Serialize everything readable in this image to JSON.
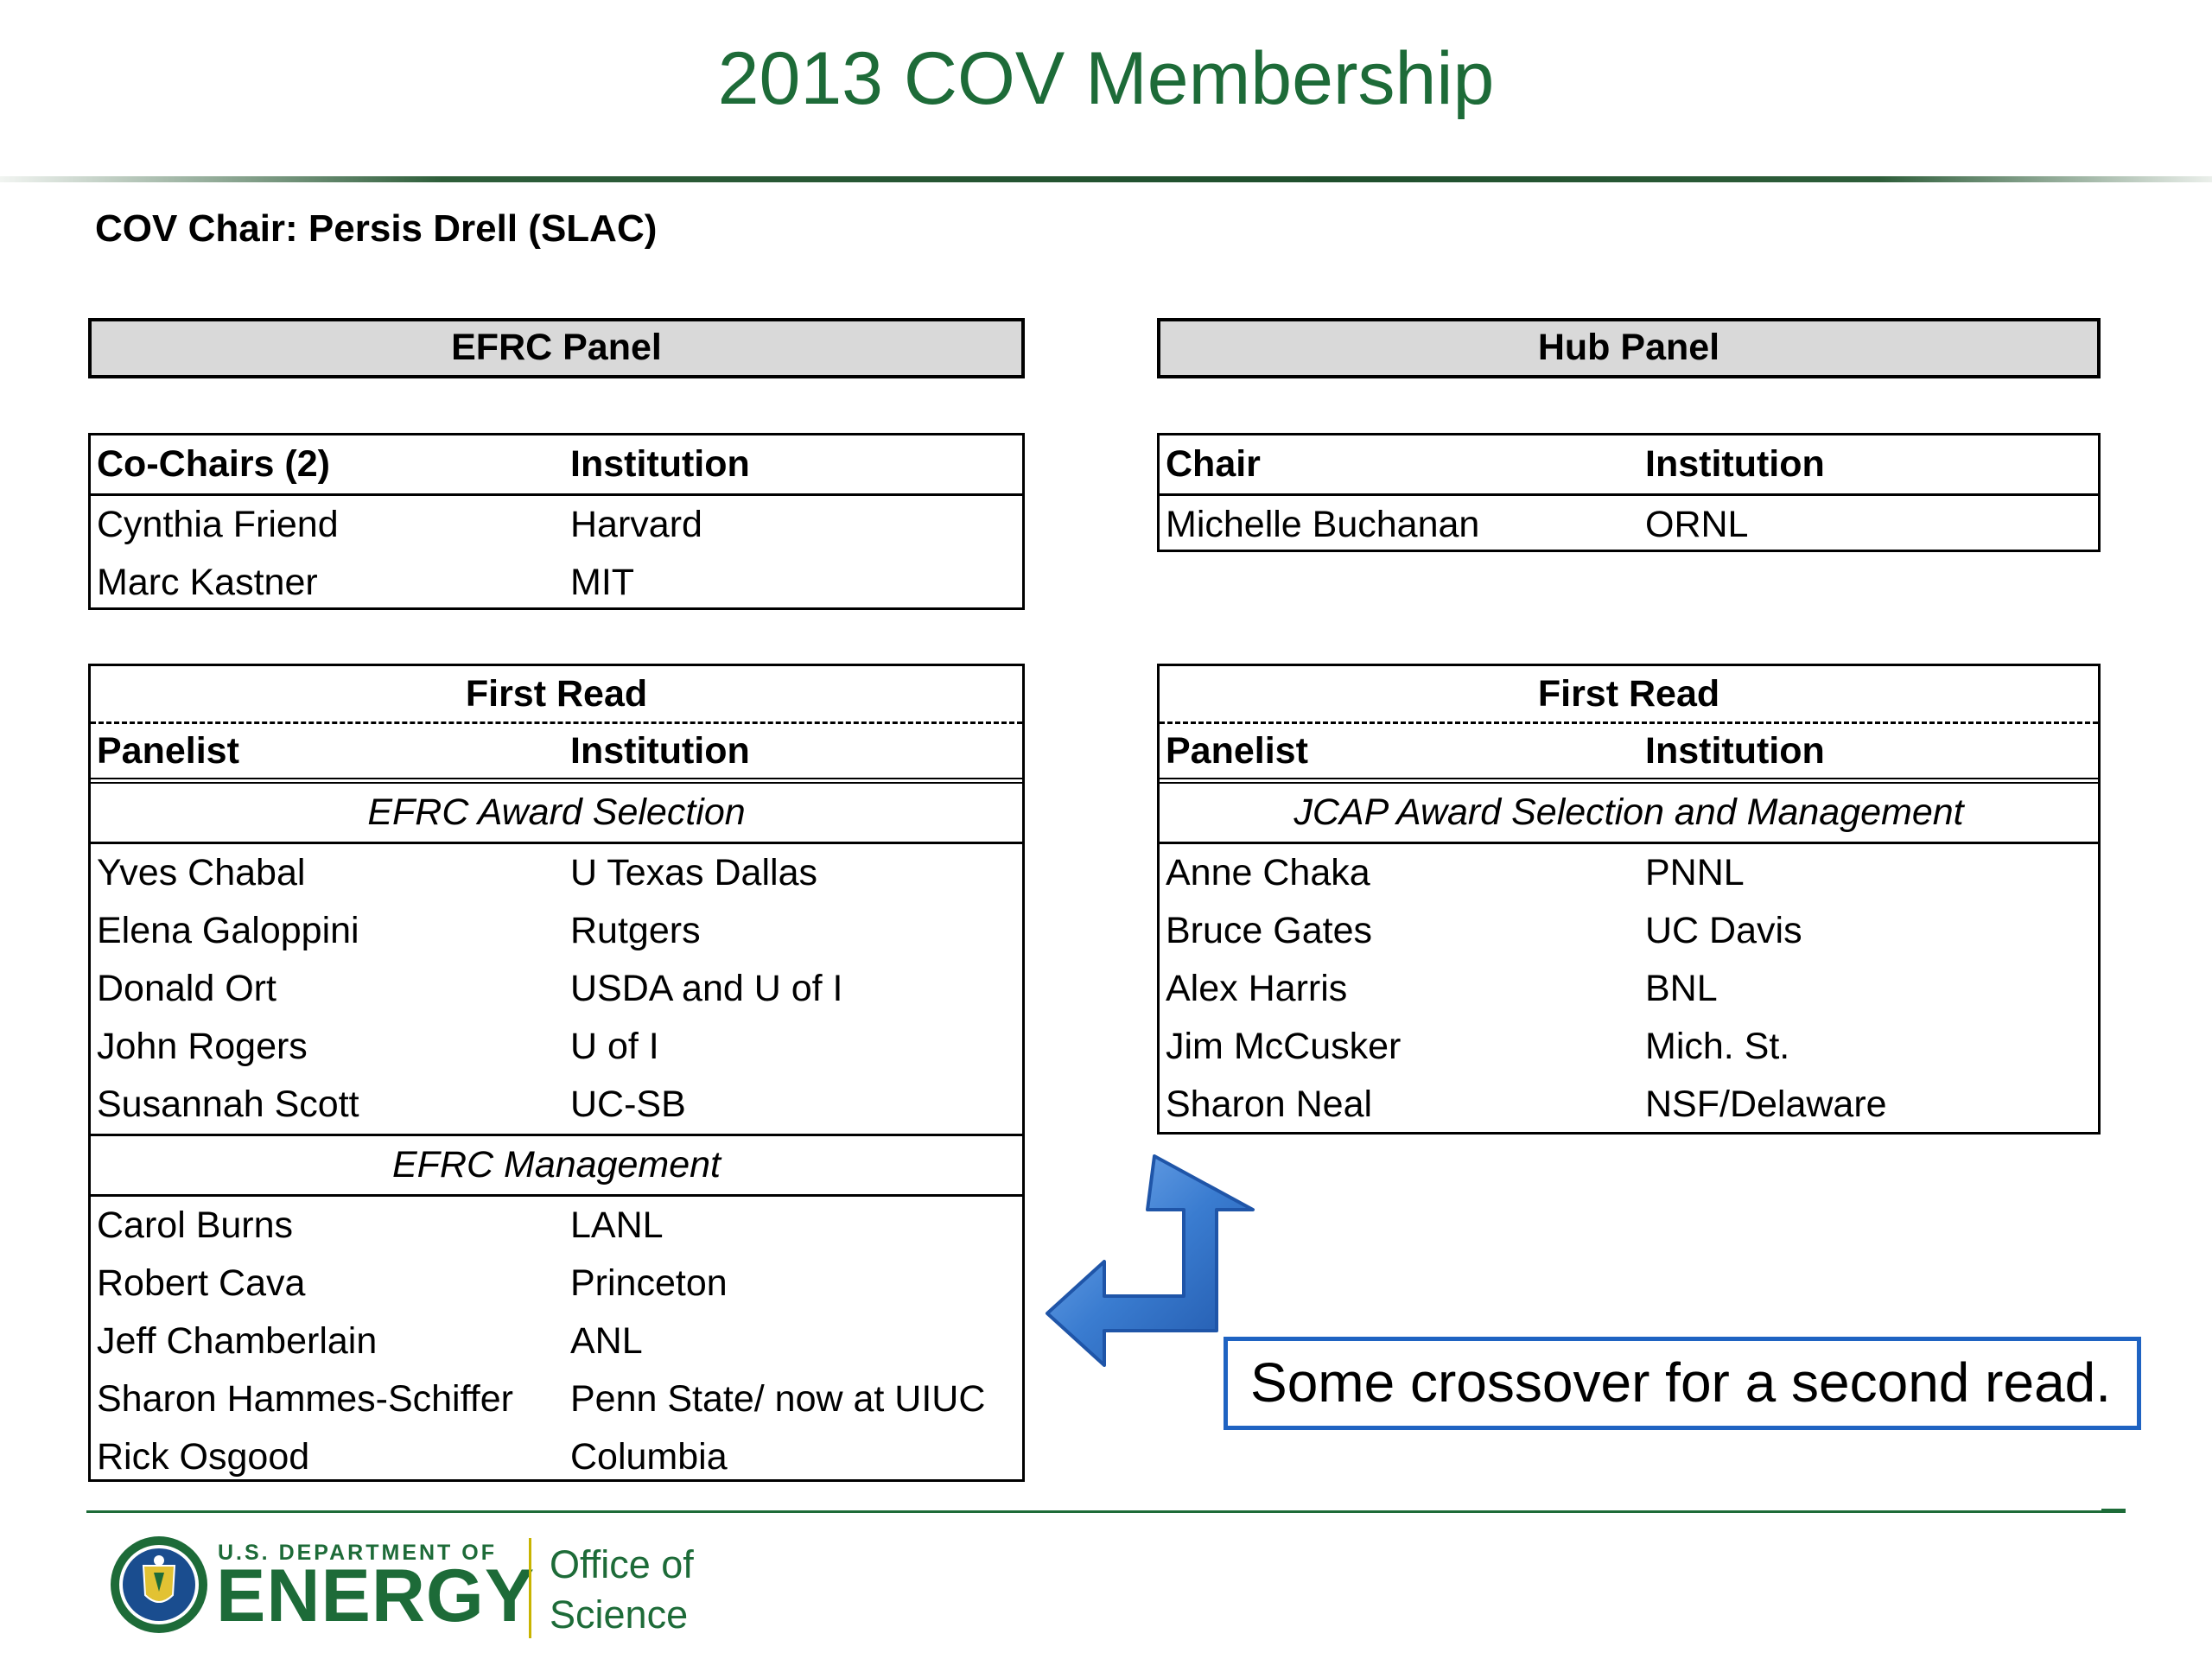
{
  "title": "2013 COV Membership",
  "cov_chair": "COV Chair:  Persis Drell (SLAC)",
  "efrc": {
    "panel_header": "EFRC Panel",
    "cochairs": {
      "col1": "Co-Chairs (2)",
      "col2": "Institution",
      "rows": [
        {
          "name": "Cynthia Friend",
          "inst": "Harvard"
        },
        {
          "name": "Marc Kastner",
          "inst": "MIT"
        }
      ]
    },
    "first_read": {
      "title": "First Read",
      "col1": "Panelist",
      "col2": "Institution",
      "sections": [
        {
          "name": "EFRC Award Selection",
          "rows": [
            {
              "name": "Yves Chabal",
              "inst": "U Texas Dallas"
            },
            {
              "name": "Elena Galoppini",
              "inst": "Rutgers"
            },
            {
              "name": "Donald Ort",
              "inst": "USDA and U of I"
            },
            {
              "name": "John Rogers",
              "inst": "U of I"
            },
            {
              "name": "Susannah Scott",
              "inst": "UC-SB"
            }
          ]
        },
        {
          "name": "EFRC Management",
          "rows": [
            {
              "name": "Carol Burns",
              "inst": "LANL"
            },
            {
              "name": "Robert Cava",
              "inst": "Princeton"
            },
            {
              "name": "Jeff Chamberlain",
              "inst": "ANL"
            },
            {
              "name": "Sharon Hammes-Schiffer",
              "inst": "Penn State/ now at UIUC"
            },
            {
              "name": "Rick Osgood",
              "inst": "Columbia"
            }
          ]
        }
      ]
    }
  },
  "hub": {
    "panel_header": "Hub Panel",
    "chair": {
      "col1": "Chair",
      "col2": "Institution",
      "rows": [
        {
          "name": "Michelle Buchanan",
          "inst": "ORNL"
        }
      ]
    },
    "first_read": {
      "title": "First Read",
      "col1": "Panelist",
      "col2": "Institution",
      "sections": [
        {
          "name": "JCAP Award Selection and Management",
          "rows": [
            {
              "name": "Anne Chaka",
              "inst": "PNNL"
            },
            {
              "name": "Bruce Gates",
              "inst": "UC Davis"
            },
            {
              "name": "Alex Harris",
              "inst": "BNL"
            },
            {
              "name": "Jim McCusker",
              "inst": "Mich. St."
            },
            {
              "name": "Sharon Neal",
              "inst": "NSF/Delaware"
            }
          ]
        }
      ]
    }
  },
  "callout": "Some crossover for a second read.",
  "footer": {
    "dept_line": "U.S. DEPARTMENT OF",
    "energy": "ENERGY",
    "office_line1": "Office of",
    "office_line2": "Science"
  },
  "colors": {
    "title_green": "#1d6b38",
    "arrow_blue": "#3a7cd0",
    "callout_border": "#1f63c2"
  }
}
